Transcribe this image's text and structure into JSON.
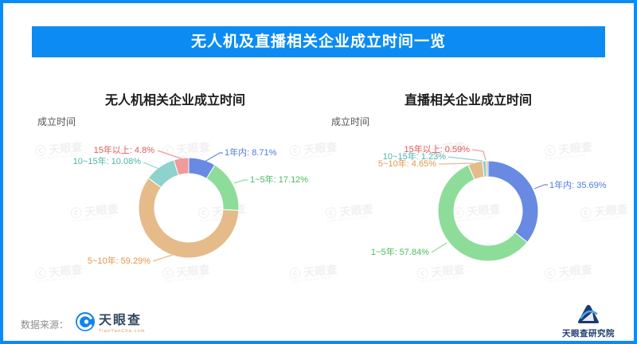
{
  "page": {
    "title": "无人机及直播相关企业成立时间一览",
    "source_label": "数据来源：",
    "brand": {
      "name": "天眼查",
      "sub": "TianYanCha.com"
    },
    "footer_brand": {
      "name": "天眼查研究院"
    },
    "watermark": {
      "text": "ⓒ 天眼查",
      "sub": "TianYanCha.com"
    }
  },
  "colors": {
    "accent": "#0c8cf2",
    "title_text": "#ffffff"
  },
  "chart_data": [
    {
      "type": "pie",
      "subtype": "donut",
      "title": "无人机相关企业成立时间",
      "axis_hint": "成立时间",
      "unit": "%",
      "legend_position": "none",
      "series": [
        {
          "name": "1年内",
          "value": 8.71,
          "color": "#688ae2",
          "label_color": "#4d7bdb"
        },
        {
          "name": "1~5年",
          "value": 17.12,
          "color": "#8edc9a",
          "label_color": "#49bb5e"
        },
        {
          "name": "5~10年",
          "value": 59.29,
          "color": "#e5bb8a",
          "label_color": "#e2964a"
        },
        {
          "name": "10~15年",
          "value": 10.08,
          "color": "#8dd2cc",
          "label_color": "#4cb5ac"
        },
        {
          "name": "15年以上",
          "value": 4.8,
          "color": "#ef9b9b",
          "label_color": "#e25858"
        }
      ]
    },
    {
      "type": "pie",
      "subtype": "donut",
      "title": "直播相关企业成立时间",
      "axis_hint": "成立时间",
      "unit": "%",
      "legend_position": "none",
      "series": [
        {
          "name": "1年内",
          "value": 35.69,
          "color": "#688ae2",
          "label_color": "#4d7bdb"
        },
        {
          "name": "1~5年",
          "value": 57.84,
          "color": "#8edc9a",
          "label_color": "#49bb5e"
        },
        {
          "name": "5~10年",
          "value": 4.65,
          "color": "#e5bb8a",
          "label_color": "#e2964a"
        },
        {
          "name": "10~15年",
          "value": 1.23,
          "color": "#8dd2cc",
          "label_color": "#4cb5ac"
        },
        {
          "name": "15年以上",
          "value": 0.59,
          "color": "#ef9b9b",
          "label_color": "#e25858"
        }
      ]
    }
  ]
}
